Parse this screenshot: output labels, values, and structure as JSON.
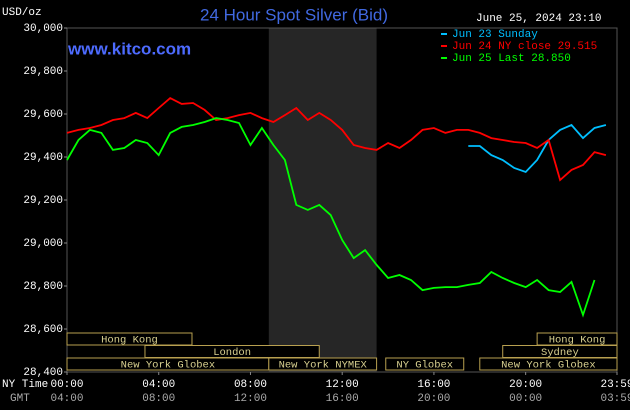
{
  "chart_data": {
    "type": "line",
    "title": "24 Hour Spot Silver (Bid)",
    "timestamp": "June 25, 2024 23:10",
    "site": "www.kitco.com",
    "y_label": "USD/oz",
    "x_label": "NY Time",
    "x2_label": "GMT",
    "xlim": [
      0,
      23.983
    ],
    "ylim": [
      28400,
      30000
    ],
    "yticks": [
      {
        "value": 28400,
        "label": "28,400"
      },
      {
        "value": 28600,
        "label": "28,600"
      },
      {
        "value": 28800,
        "label": "28,800"
      },
      {
        "value": 29000,
        "label": "29,000"
      },
      {
        "value": 29200,
        "label": "29,200"
      },
      {
        "value": 29400,
        "label": "29,400"
      },
      {
        "value": 29600,
        "label": "29,600"
      },
      {
        "value": 29800,
        "label": "29,800"
      },
      {
        "value": 30000,
        "label": "30,000"
      }
    ],
    "xticks": [
      {
        "value": 0,
        "label": "00:00"
      },
      {
        "value": 4,
        "label": "04:00"
      },
      {
        "value": 8,
        "label": "08:00"
      },
      {
        "value": 12,
        "label": "12:00"
      },
      {
        "value": 16,
        "label": "16:00"
      },
      {
        "value": 20,
        "label": "20:00"
      },
      {
        "value": 23.983,
        "label": "23:59"
      }
    ],
    "x2ticks": [
      {
        "value": 0,
        "label": "04:00"
      },
      {
        "value": 4,
        "label": "08:00"
      },
      {
        "value": 8,
        "label": "12:00"
      },
      {
        "value": 12,
        "label": "16:00"
      },
      {
        "value": 16,
        "label": "20:00"
      },
      {
        "value": 20,
        "label": "00:00"
      },
      {
        "value": 23.983,
        "label": "03:59"
      }
    ],
    "grid": false,
    "x": [
      0,
      0.5,
      1,
      1.5,
      2,
      2.5,
      3,
      3.5,
      4,
      4.5,
      5,
      5.5,
      6,
      6.5,
      7,
      7.5,
      8,
      8.5,
      9,
      9.5,
      10,
      10.5,
      11,
      11.5,
      12,
      12.5,
      13,
      13.5,
      14,
      14.5,
      15,
      15.5,
      16,
      16.5,
      17,
      17.5,
      18,
      18.5,
      19,
      19.5,
      20,
      20.5,
      21,
      21.5,
      22,
      22.5,
      23,
      23.5
    ],
    "series": [
      {
        "name": "Jun 23 Sunday",
        "color": "#00bfff",
        "values": [
          null,
          null,
          null,
          null,
          null,
          null,
          null,
          null,
          null,
          null,
          null,
          null,
          null,
          null,
          null,
          null,
          null,
          null,
          null,
          null,
          null,
          null,
          null,
          null,
          null,
          null,
          null,
          null,
          null,
          null,
          null,
          null,
          null,
          null,
          null,
          29451,
          29451,
          29409,
          29386,
          29349,
          29330,
          29386,
          29479,
          29526,
          29549,
          29488,
          29535,
          29549
        ]
      },
      {
        "name": "Jun 24 NY close 29.515",
        "color": "#ff0000",
        "values": [
          29512,
          29526,
          29535,
          29549,
          29572,
          29581,
          29605,
          29581,
          29628,
          29674,
          29647,
          29651,
          29619,
          29572,
          29581,
          29595,
          29605,
          29581,
          29563,
          29595,
          29628,
          29572,
          29605,
          29572,
          29526,
          29456,
          29442,
          29433,
          29465,
          29442,
          29479,
          29526,
          29535,
          29512,
          29526,
          29526,
          29512,
          29488,
          29479,
          29470,
          29465,
          29442,
          29479,
          29293,
          29340,
          29363,
          29423,
          29409
        ]
      },
      {
        "name": "Jun 25 Last 28.850",
        "color": "#00ff00",
        "values": [
          29386,
          29479,
          29526,
          29512,
          29433,
          29442,
          29479,
          29465,
          29409,
          29512,
          29540,
          29549,
          29563,
          29581,
          29572,
          29558,
          29456,
          29535,
          29456,
          29386,
          29177,
          29154,
          29177,
          29130,
          29014,
          28930,
          28967,
          28898,
          28837,
          28851,
          28828,
          28781,
          28791,
          28795,
          28795,
          28805,
          28814,
          28865,
          28837,
          28814,
          28795,
          28828,
          28781,
          28772,
          28819,
          28665,
          28828,
          null
        ]
      }
    ],
    "sessions": [
      {
        "label": "Hong Kong",
        "start": 0,
        "end": 5.45
      },
      {
        "label": "London",
        "start": 3.4,
        "end": 11
      },
      {
        "label": "New York Globex",
        "start": 0,
        "end": 8.8
      },
      {
        "label": "New York NYMEX",
        "start": 8.8,
        "end": 13.5
      },
      {
        "label": "NY Globex",
        "start": 13.9,
        "end": 17.3
      },
      {
        "label": "Hong Kong",
        "start": 20.5,
        "end": 23.983
      },
      {
        "label": "Sydney",
        "start": 19,
        "end": 23.983
      },
      {
        "label": "New York Globex",
        "start": 18,
        "end": 23.983
      }
    ]
  }
}
